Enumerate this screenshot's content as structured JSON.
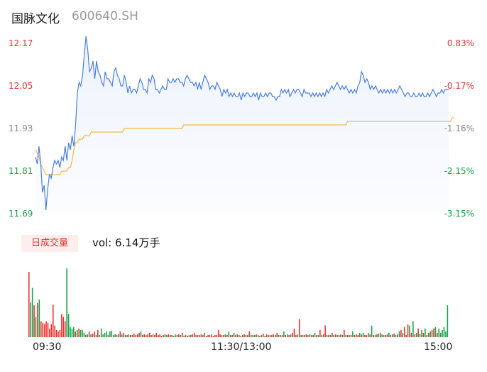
{
  "header": {
    "name": "国脉文化",
    "code": "600640.SH"
  },
  "price_axis": {
    "ticks": [
      "12.17",
      "12.05",
      "11.93",
      "11.81",
      "11.69"
    ]
  },
  "pct_axis": {
    "ticks": [
      "0.83%",
      "-0.17%",
      "-1.16%",
      "-2.15%",
      "-3.15%"
    ]
  },
  "volume": {
    "badge": "日成交量",
    "label": "vol: 6.14万手"
  },
  "time_axis": {
    "ticks": [
      "09:30",
      "11:30/13:00",
      "15:00"
    ]
  },
  "colors": {
    "price_line": "#4a7fe0",
    "avg_line": "#f5b942",
    "up": "#e8312f",
    "down": "#16a34a"
  },
  "chart_data": [
    {
      "type": "line",
      "xlabel": "",
      "ylabel": "",
      "ylim": [
        11.69,
        12.17
      ],
      "x_range": [
        0,
        240
      ],
      "series": [
        {
          "values": [
            11.85,
            11.83,
            11.88,
            11.83,
            11.75,
            11.77,
            11.7,
            11.76,
            11.8,
            11.79,
            11.82,
            11.84,
            11.83,
            11.84,
            11.82,
            11.85,
            11.84,
            11.88,
            11.84,
            11.89,
            11.87,
            11.91,
            11.88,
            11.94,
            12.03,
            12.06,
            12.05,
            12.08,
            12.14,
            12.19,
            12.15,
            12.09,
            12.1,
            12.12,
            12.07,
            12.12,
            12.09,
            12.08,
            12.06,
            12.05,
            12.09,
            12.07,
            12.07,
            12.06,
            12.05,
            12.09,
            12.1,
            12.08,
            12.07,
            12.05,
            12.05,
            12.08,
            12.06,
            12.03,
            12.05,
            12.03,
            12.04,
            12.04,
            12.03,
            12.05,
            12.07,
            12.06,
            12.04,
            12.04,
            12.03,
            12.07,
            12.06,
            12.08,
            12.07,
            12.04,
            12.04,
            12.03,
            12.04,
            12.05,
            12.04,
            12.04,
            12.07,
            12.06,
            12.06,
            12.07,
            12.06,
            12.07,
            12.07,
            12.06,
            12.06,
            12.05,
            12.07,
            12.08,
            12.07,
            12.06,
            12.06,
            12.05,
            12.06,
            12.04,
            12.06,
            12.04,
            12.06,
            12.08,
            12.07,
            12.06,
            12.04,
            12.05,
            12.05,
            12.04,
            12.06,
            12.05,
            12.04,
            12.02,
            12.04,
            12.03,
            12.04,
            12.02,
            12.03,
            12.02,
            12.03,
            12.02,
            12.02,
            12.03,
            12.01,
            12.03,
            12.02,
            12.03,
            12.03,
            12.02,
            12.02,
            12.03,
            12.02,
            12.03,
            12.01,
            12.03,
            12.02,
            12.02,
            12.03,
            12.02,
            12.03,
            12.03,
            12.02,
            12.02,
            12.01,
            12.02,
            12.02,
            12.04,
            12.03,
            12.04,
            12.03,
            12.04,
            12.02,
            12.03,
            12.04,
            12.03,
            12.04,
            12.04,
            12.03,
            12.02,
            12.04,
            12.03,
            12.03,
            12.03,
            12.02,
            12.03,
            12.02,
            12.03,
            12.02,
            12.03,
            12.02,
            12.03,
            12.02,
            12.04,
            12.03,
            12.04,
            12.05,
            12.04,
            12.05,
            12.06,
            12.05,
            12.04,
            12.05,
            12.04,
            12.05,
            12.04,
            12.03,
            12.04,
            12.03,
            12.04,
            12.03,
            12.05,
            12.06,
            12.09,
            12.08,
            12.06,
            12.07,
            12.06,
            12.04,
            12.05,
            12.04,
            12.05,
            12.04,
            12.03,
            12.04,
            12.03,
            12.04,
            12.03,
            12.04,
            12.03,
            12.04,
            12.03,
            12.04,
            12.03,
            12.04,
            12.05,
            12.04,
            12.03,
            12.02,
            12.03,
            12.03,
            12.02,
            12.02,
            12.03,
            12.02,
            12.02,
            12.03,
            12.02,
            12.03,
            12.02,
            12.02,
            12.03,
            12.02,
            12.03,
            12.04,
            12.03,
            12.02,
            12.03,
            12.03,
            12.04,
            12.03,
            12.04,
            12.04,
            12.04
          ]
        },
        {
          "values": [
            11.87,
            11.86,
            11.85,
            11.83,
            11.82,
            11.81,
            11.8,
            11.8,
            11.8,
            11.8,
            11.8,
            11.8,
            11.8,
            11.8,
            11.8,
            11.81,
            11.81,
            11.81,
            11.81,
            11.82,
            11.82,
            11.84,
            11.87,
            11.89,
            11.89,
            11.9,
            11.9,
            11.9,
            11.91,
            11.91,
            11.91,
            11.91,
            11.92,
            11.92,
            11.92,
            11.92,
            11.92,
            11.92,
            11.92,
            11.92,
            11.92,
            11.92,
            11.92,
            11.92,
            11.92,
            11.92,
            11.92,
            11.92,
            11.92,
            11.92,
            11.92,
            11.93,
            11.93,
            11.93,
            11.93,
            11.93,
            11.93,
            11.93,
            11.93,
            11.93,
            11.93,
            11.93,
            11.93,
            11.93,
            11.93,
            11.93,
            11.93,
            11.93,
            11.93,
            11.93,
            11.93,
            11.93,
            11.93,
            11.93,
            11.93,
            11.93,
            11.93,
            11.93,
            11.93,
            11.93,
            11.93,
            11.93,
            11.93,
            11.93,
            11.93,
            11.94,
            11.94,
            11.94,
            11.94,
            11.94,
            11.94,
            11.94,
            11.94,
            11.94,
            11.94,
            11.94,
            11.94,
            11.94,
            11.94,
            11.94,
            11.94,
            11.94,
            11.94,
            11.94,
            11.94,
            11.94,
            11.94,
            11.94,
            11.94,
            11.94,
            11.94,
            11.94,
            11.94,
            11.94,
            11.94,
            11.94,
            11.94,
            11.94,
            11.94,
            11.94,
            11.94,
            11.94,
            11.94,
            11.94,
            11.94,
            11.94,
            11.94,
            11.94,
            11.94,
            11.94,
            11.94,
            11.94,
            11.94,
            11.94,
            11.94,
            11.94,
            11.94,
            11.94,
            11.94,
            11.94,
            11.94,
            11.94,
            11.94,
            11.94,
            11.94,
            11.94,
            11.94,
            11.94,
            11.94,
            11.94,
            11.94,
            11.94,
            11.94,
            11.94,
            11.94,
            11.94,
            11.94,
            11.94,
            11.94,
            11.94,
            11.94,
            11.94,
            11.94,
            11.94,
            11.94,
            11.94,
            11.94,
            11.94,
            11.94,
            11.94,
            11.94,
            11.94,
            11.94,
            11.94,
            11.94,
            11.94,
            11.94,
            11.94,
            11.94,
            11.95,
            11.95,
            11.95,
            11.95,
            11.95,
            11.95,
            11.95,
            11.95,
            11.95,
            11.95,
            11.95,
            11.95,
            11.95,
            11.95,
            11.95,
            11.95,
            11.95,
            11.95,
            11.95,
            11.95,
            11.95,
            11.95,
            11.95,
            11.95,
            11.95,
            11.95,
            11.95,
            11.95,
            11.95,
            11.95,
            11.95,
            11.95,
            11.95,
            11.95,
            11.95,
            11.95,
            11.95,
            11.95,
            11.95,
            11.95,
            11.95,
            11.95,
            11.95,
            11.95,
            11.95,
            11.95,
            11.95,
            11.95,
            11.95,
            11.95,
            11.95,
            11.95,
            11.95,
            11.95,
            11.95,
            11.95,
            11.95,
            11.95,
            11.95,
            11.95,
            11.96,
            11.96
          ]
        }
      ]
    },
    {
      "type": "bar",
      "up_color": "#e8312f",
      "down_color": "#16a34a",
      "values": [
        90,
        48,
        68,
        44,
        28,
        47,
        52,
        22,
        20,
        18,
        22,
        20,
        12,
        18,
        45,
        16,
        10,
        8,
        10,
        32,
        28,
        22,
        95,
        32,
        14,
        12,
        14,
        8,
        10,
        12,
        10,
        10,
        6,
        3,
        4,
        8,
        4,
        5,
        8,
        3,
        10,
        3,
        12,
        4,
        6,
        8,
        3,
        8,
        9,
        3,
        4,
        3,
        4,
        8,
        4,
        6,
        3,
        3,
        4,
        3,
        3,
        5,
        3,
        4,
        6,
        8,
        3,
        4,
        3,
        4,
        6,
        3,
        4,
        3,
        6,
        3,
        4,
        2,
        3,
        4,
        3,
        4,
        3,
        3,
        2,
        4,
        3,
        4,
        3,
        6,
        2,
        3,
        2,
        3,
        3,
        4,
        6,
        3,
        3,
        3,
        4,
        3,
        6,
        2,
        3,
        3,
        4,
        2,
        3,
        3,
        10,
        4,
        3,
        3,
        4,
        3,
        8,
        3,
        3,
        6,
        3,
        4,
        3,
        2,
        3,
        4,
        3,
        3,
        8,
        3,
        3,
        3,
        4,
        3,
        2,
        3,
        5,
        2,
        4,
        3,
        3,
        3,
        4,
        3,
        6,
        3,
        3,
        3,
        8,
        3,
        4,
        3,
        4,
        6,
        12,
        3,
        4,
        25,
        3,
        3,
        3,
        4,
        3,
        4,
        3,
        3,
        6,
        3,
        3,
        10,
        3,
        4,
        16,
        3,
        3,
        3,
        6,
        3,
        4,
        3,
        3,
        4,
        3,
        10,
        3,
        3,
        3,
        3,
        8,
        3,
        4,
        3,
        6,
        4,
        6,
        3,
        3,
        6,
        4,
        16,
        3,
        3,
        4,
        5,
        6,
        4,
        3,
        3,
        4,
        6,
        3,
        4,
        5,
        3,
        4,
        8,
        10,
        6,
        14,
        3,
        18,
        16,
        6,
        22,
        4,
        6,
        12,
        5,
        10,
        6,
        12,
        3,
        6,
        8,
        10,
        12,
        14,
        6,
        12,
        6,
        10,
        14,
        8,
        44
      ],
      "directions": [
        "u",
        "d",
        "d",
        "u",
        "d",
        "u",
        "d",
        "u",
        "u",
        "u",
        "u",
        "u",
        "u",
        "u",
        "u",
        "u",
        "u",
        "u",
        "u",
        "u",
        "u",
        "u",
        "d",
        "d",
        "d",
        "d",
        "d",
        "u",
        "d",
        "u",
        "d",
        "d",
        "d",
        "u",
        "d",
        "u",
        "d",
        "u",
        "u",
        "u",
        "u",
        "d",
        "d",
        "d",
        "d",
        "d",
        "u",
        "d",
        "d",
        "d",
        "d",
        "u",
        "d",
        "u",
        "d",
        "u",
        "u",
        "d",
        "d",
        "u",
        "u",
        "u",
        "d",
        "u",
        "u",
        "d",
        "u",
        "u",
        "d",
        "u",
        "u",
        "u",
        "d",
        "u",
        "u",
        "u",
        "u",
        "u",
        "d",
        "u",
        "d",
        "u",
        "u",
        "u",
        "d",
        "d",
        "u",
        "u",
        "d",
        "u",
        "d",
        "u",
        "u",
        "d",
        "u",
        "u",
        "u",
        "d",
        "u",
        "d",
        "u",
        "u",
        "d",
        "u",
        "u",
        "u",
        "d",
        "u",
        "u",
        "u",
        "u",
        "u",
        "d",
        "u",
        "d",
        "u",
        "d",
        "u",
        "d",
        "u",
        "u",
        "d",
        "u",
        "d",
        "u",
        "u",
        "u",
        "d",
        "u",
        "d",
        "u",
        "d",
        "u",
        "d",
        "u",
        "d",
        "u",
        "d",
        "u",
        "u",
        "u",
        "d",
        "u",
        "d",
        "u",
        "u",
        "d",
        "u",
        "d",
        "u",
        "d",
        "u",
        "d",
        "u",
        "u",
        "u",
        "d",
        "u",
        "d",
        "u",
        "u",
        "u",
        "d",
        "u",
        "d",
        "u",
        "d",
        "u",
        "d",
        "u",
        "d",
        "u",
        "u",
        "d",
        "u",
        "d",
        "u",
        "d",
        "u",
        "d",
        "u",
        "d",
        "u",
        "u",
        "d",
        "u",
        "d",
        "u",
        "d",
        "u",
        "u",
        "u",
        "d",
        "u",
        "d",
        "u",
        "u",
        "d",
        "u",
        "d",
        "u",
        "d",
        "u",
        "d",
        "u",
        "d",
        "d",
        "u",
        "u",
        "d",
        "u",
        "d",
        "u",
        "d",
        "u",
        "d",
        "u",
        "d",
        "u",
        "u",
        "u",
        "d",
        "u",
        "d",
        "u",
        "d",
        "u",
        "d",
        "d",
        "u",
        "d",
        "u",
        "d",
        "u",
        "d",
        "u",
        "d",
        "u",
        "d"
      ]
    }
  ]
}
